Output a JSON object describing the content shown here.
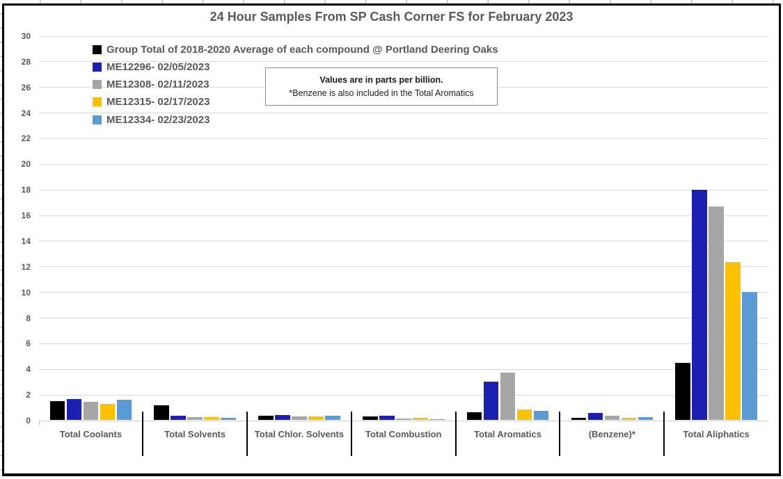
{
  "page": {
    "title": "24 Hour Samples From SP Cash Corner FS for February 2023",
    "annotation": {
      "line1": "Values are in parts per billion.",
      "line2": "*Benzene is also included in the Total Aromatics"
    }
  },
  "chart_data": {
    "type": "bar",
    "title": "24 Hour Samples From SP Cash Corner FS for February 2023",
    "units": "parts per billion",
    "categories": [
      "Total Coolants",
      "Total Solvents",
      "Total Chlor. Solvents",
      "Total Combustion",
      "Total Aromatics",
      "(Benzene)*",
      "Total Aliphatics"
    ],
    "series": [
      {
        "name": "Group Total of 2018-2020 Average of each compound @ Portland Deering Oaks",
        "color": "#000000",
        "values": [
          1.5,
          1.15,
          0.35,
          0.3,
          0.6,
          0.2,
          4.5
        ]
      },
      {
        "name": "ME12296- 02/05/2023",
        "color": "#1c20b2",
        "values": [
          1.65,
          0.35,
          0.4,
          0.35,
          3.0,
          0.55,
          18.0
        ]
      },
      {
        "name": "ME12308- 02/11/2023",
        "color": "#a6a6a6",
        "values": [
          1.45,
          0.25,
          0.3,
          0.15,
          3.7,
          0.35,
          16.7
        ]
      },
      {
        "name": "ME12315- 02/17/2023",
        "color": "#ffc000",
        "values": [
          1.25,
          0.25,
          0.3,
          0.18,
          0.85,
          0.2,
          12.35
        ]
      },
      {
        "name": "ME12334- 02/23/2023",
        "color": "#5b9bd5",
        "values": [
          1.6,
          0.2,
          0.35,
          0.1,
          0.75,
          0.25,
          10.0
        ]
      }
    ],
    "ylim": [
      0,
      30
    ],
    "ytick_step": 2,
    "grid": true,
    "legend_position": "top-left-inside",
    "annotation": "Values are in parts per billion. *Benzene is also included in the Total Aromatics",
    "gridline_color": "#d9d9d9",
    "text_color": "#595959"
  }
}
